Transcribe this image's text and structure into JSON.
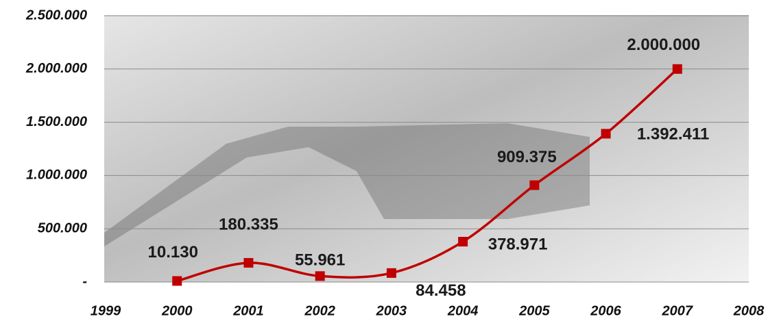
{
  "chart_data": {
    "type": "line",
    "x": [
      2000,
      2001,
      2002,
      2003,
      2004,
      2005,
      2006,
      2007
    ],
    "series": [
      {
        "color": "#c00000",
        "values": [
          10130,
          180335,
          55961,
          84458,
          378971,
          909375,
          1392411,
          2000000
        ],
        "value_labels": [
          "10.130",
          "180.335",
          "55.961",
          "84.458",
          "378.971",
          "909.375",
          "1.392.411",
          "2.000.000"
        ]
      }
    ],
    "xlim": [
      1999,
      2008
    ],
    "xticks": [
      1999,
      2000,
      2001,
      2002,
      2003,
      2004,
      2005,
      2006,
      2007,
      2008
    ],
    "ylim": [
      0,
      2500000
    ],
    "yticks": [
      {
        "value": 0,
        "label": "-"
      },
      {
        "value": 500000,
        "label": "500.000"
      },
      {
        "value": 1000000,
        "label": "1.000.000"
      },
      {
        "value": 1500000,
        "label": "1.500.000"
      },
      {
        "value": 2000000,
        "label": "2.000.000"
      },
      {
        "value": 2500000,
        "label": "2.500.000"
      }
    ],
    "grid": true,
    "smooth": true
  }
}
